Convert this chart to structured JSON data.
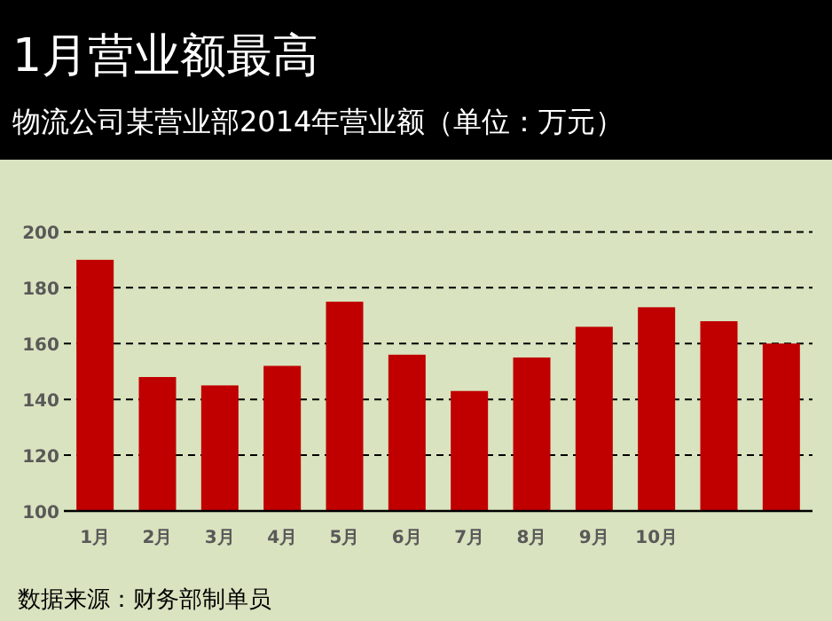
{
  "chart_data": {
    "type": "bar",
    "title": "1月营业额最高",
    "subtitle": "物流公司某营业部2014年营业额（单位：万元）",
    "categories": [
      "1月",
      "2月",
      "3月",
      "4月",
      "5月",
      "6月",
      "7月",
      "8月",
      "9月",
      "10月",
      null,
      null
    ],
    "values": [
      190,
      148,
      145,
      152,
      175,
      156,
      143,
      155,
      166,
      173,
      168,
      160
    ],
    "color": "#c00000",
    "ylim": [
      100,
      200
    ],
    "yticks": [
      100,
      120,
      140,
      160,
      180,
      200
    ],
    "grid": "y",
    "annotations": [
      "数据来源：财务部制单员"
    ]
  }
}
